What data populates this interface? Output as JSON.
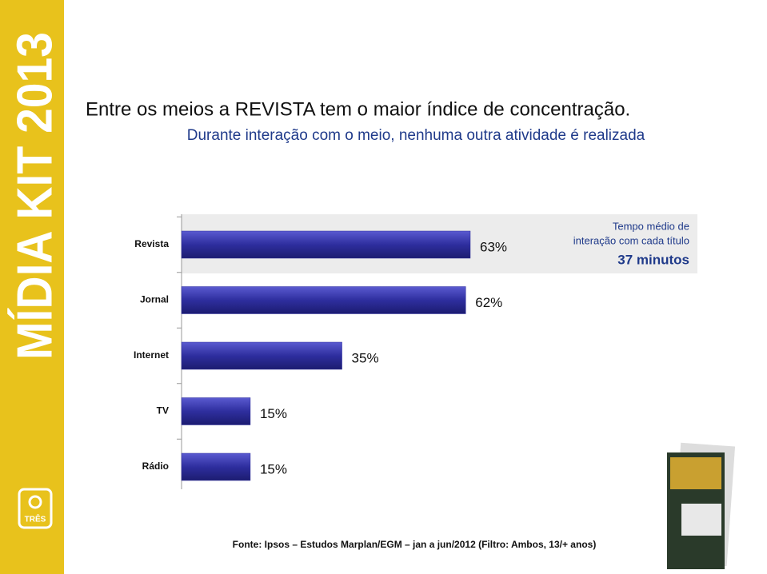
{
  "chart_data": {
    "type": "hbar",
    "title": "Entre os meios a REVISTA tem o maior índice de concentração.",
    "subtitle": "Durante interação com o meio, nenhuma outra atividade é realizada",
    "categories": [
      "Revista",
      "Jornal",
      "Internet",
      "TV",
      "Rádio"
    ],
    "values": [
      63,
      62,
      35,
      15,
      15
    ],
    "value_labels": [
      "63%",
      "62%",
      "35%",
      "15%",
      "15%"
    ],
    "color": "#2e2e9e",
    "xlim": [
      0,
      100
    ],
    "annotation": [
      "Tempo médio de",
      "interação com cada título",
      "37 minutos"
    ],
    "source": "Fonte: Ipsos – Estudos Marplan/EGM – jan a jun/2012 (Filtro: Ambos, 13/+ anos)"
  },
  "sidebar": {
    "text": "MÍDIA KIT 2013",
    "logo": "TRÊS"
  }
}
